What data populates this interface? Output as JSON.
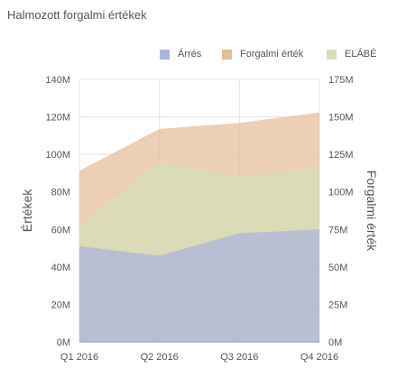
{
  "chart_data": {
    "type": "area",
    "title": "Halmozott forgalmi értékek",
    "categories": [
      "Q1 2016",
      "Q2 2016",
      "Q3 2016",
      "Q4 2016"
    ],
    "series": [
      {
        "name": "Árrés",
        "axis": "left",
        "color": "#aab4dc",
        "values": [
          51000000,
          46000000,
          58000000,
          60000000
        ]
      },
      {
        "name": "Forgalmi érték",
        "axis": "right",
        "color": "#e4bc98",
        "values": [
          114000000,
          142000000,
          146000000,
          153000000
        ]
      },
      {
        "name": "ELÁBÉ",
        "axis": "left",
        "color": "#d6dfb8",
        "values": [
          62000000,
          96000000,
          88000000,
          93000000
        ]
      }
    ],
    "y_left": {
      "label": "Értékek",
      "ylim": [
        0,
        140000000
      ],
      "ticks": [
        "0M",
        "20M",
        "40M",
        "60M",
        "80M",
        "100M",
        "120M",
        "140M"
      ]
    },
    "y_right": {
      "label": "Forgalmi érték",
      "ylim": [
        0,
        175000000
      ],
      "ticks": [
        "0M",
        "25M",
        "50M",
        "75M",
        "100M",
        "125M",
        "150M",
        "175M"
      ]
    },
    "grid": true,
    "legend_position": "top-right"
  }
}
